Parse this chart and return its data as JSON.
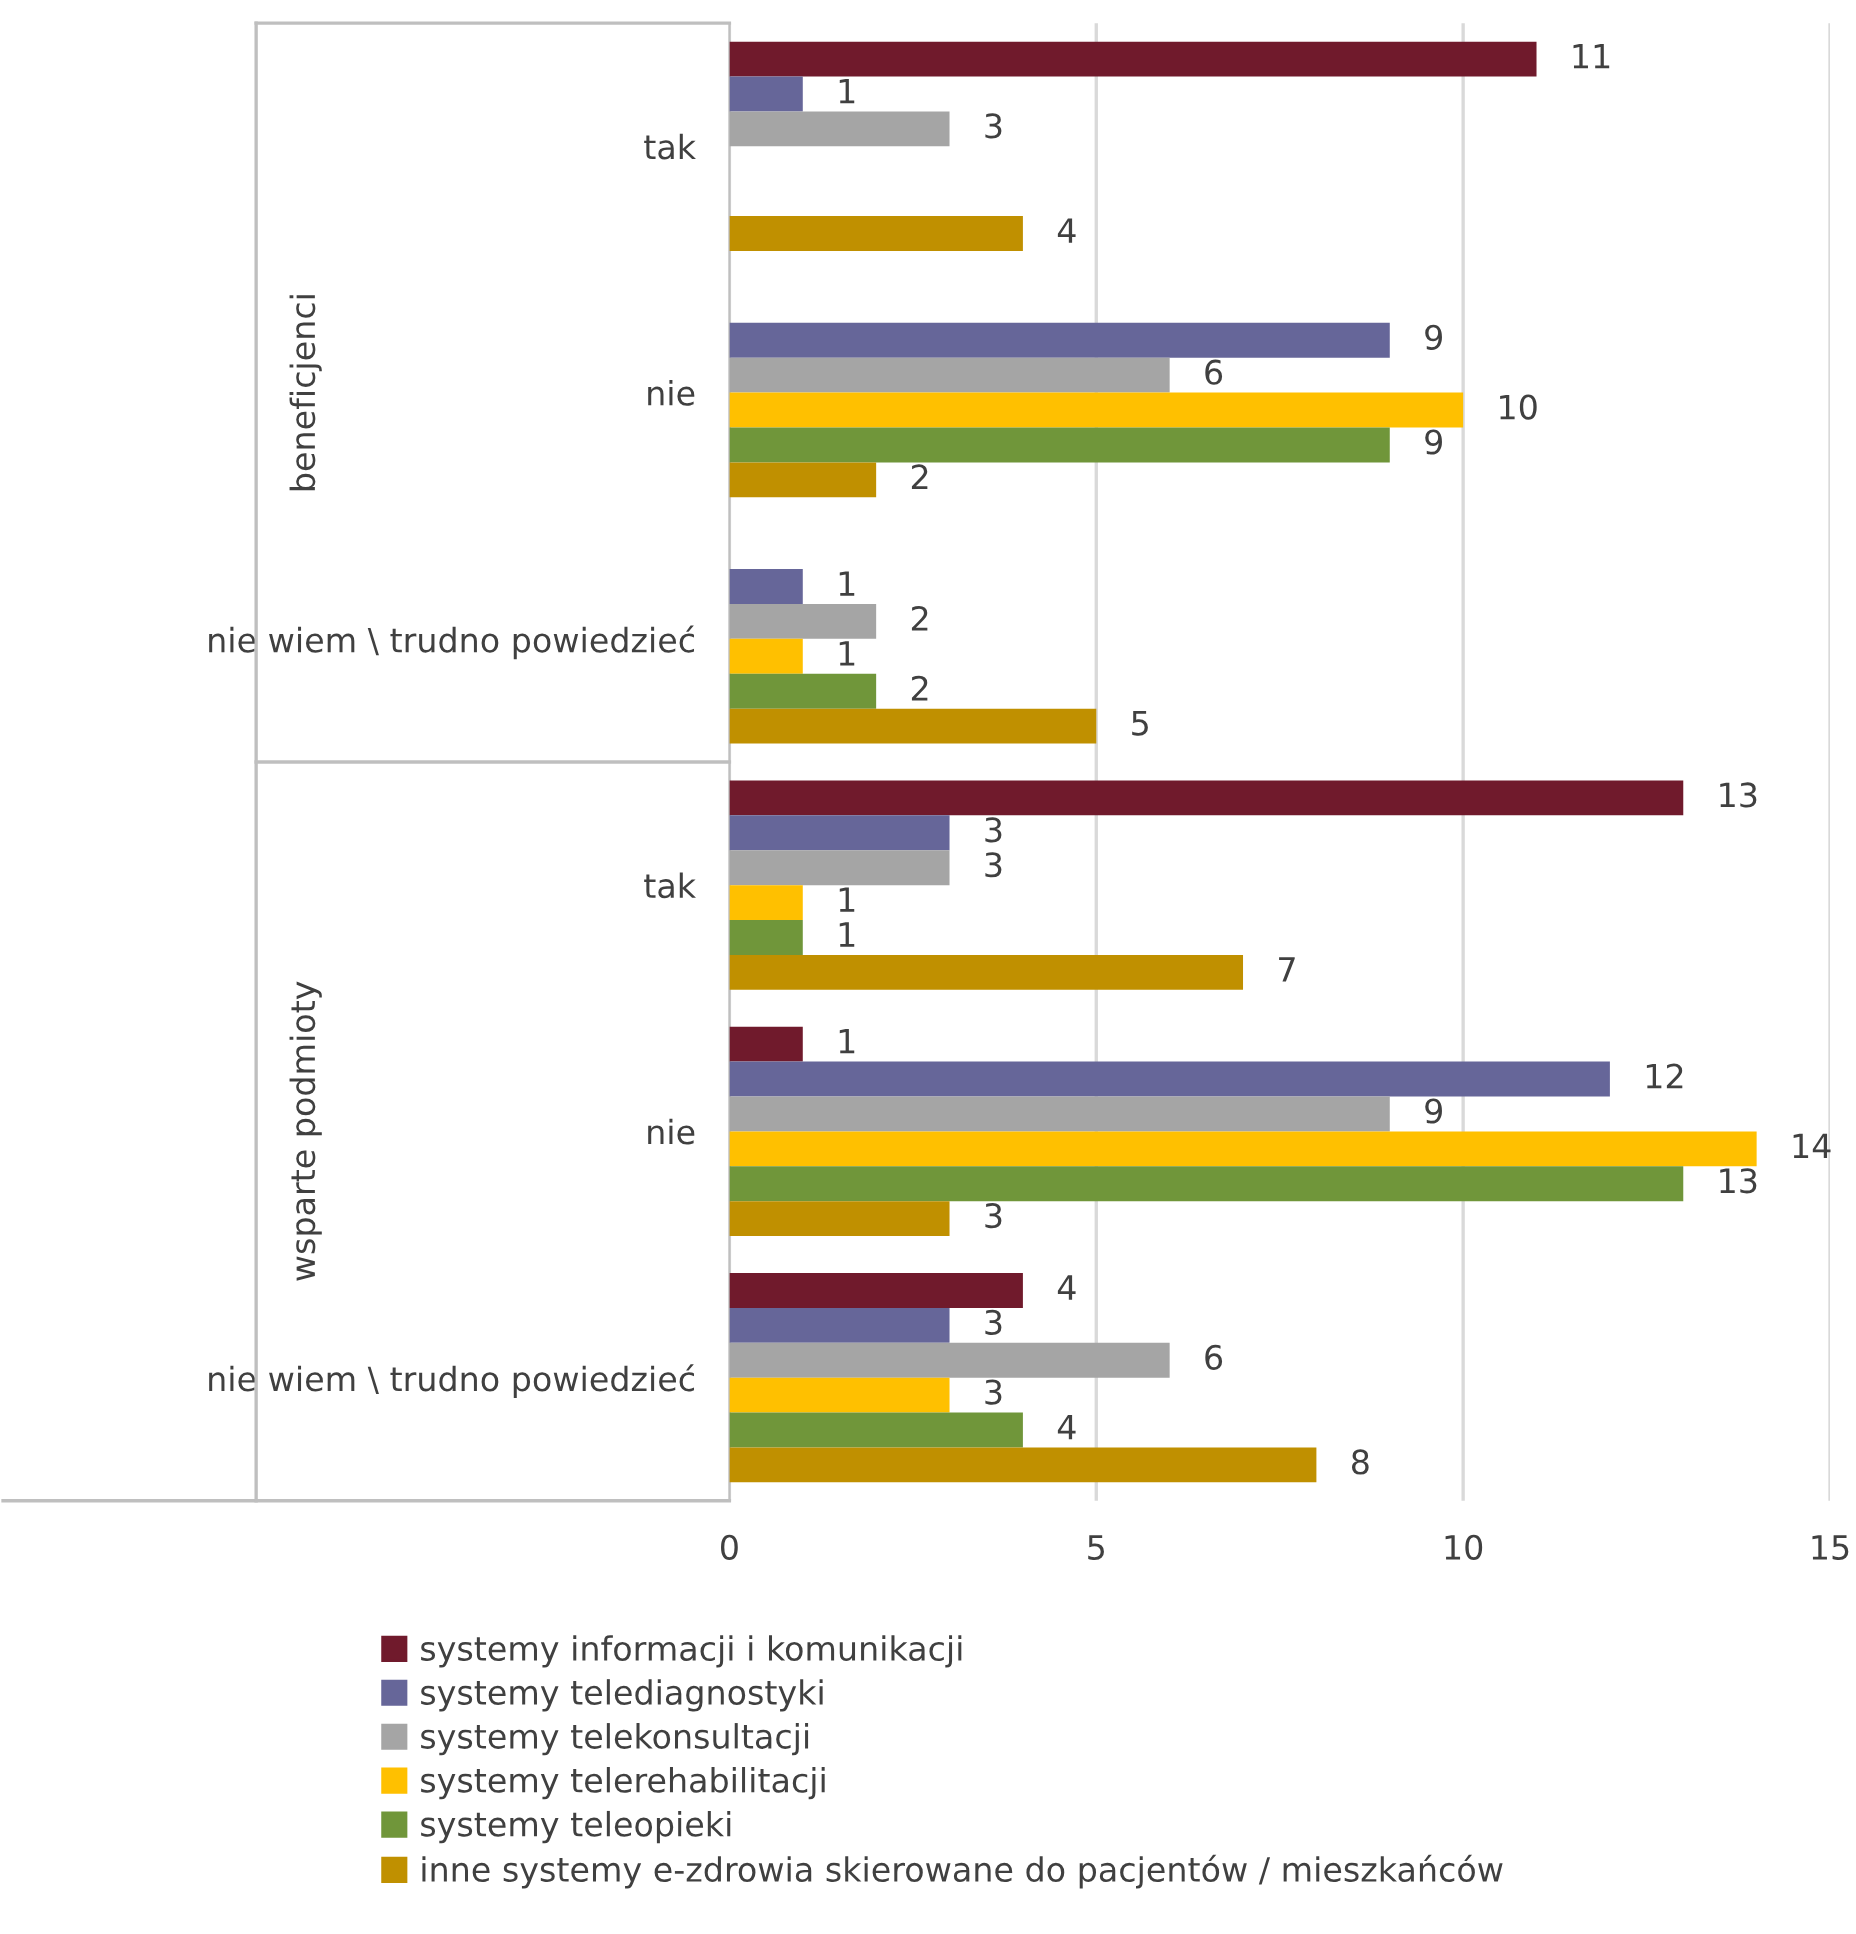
{
  "chart_data": {
    "type": "bar",
    "orientation": "horizontal",
    "categories": [
      "tak",
      "nie",
      "nie wiem \\ trudno powiedzieć",
      "tak",
      "nie",
      "nie wiem \\ trudno powiedzieć"
    ],
    "annotations": [
      "beneficjenci",
      "wsparte podmioty"
    ],
    "series": [
      {
        "name": "systemy informacji i komunikacji",
        "color": "#701a2c",
        "values": [
          11,
          null,
          null,
          13,
          1,
          4
        ]
      },
      {
        "name": "systemy telediagnostyki",
        "color": "#666699",
        "values": [
          1,
          9,
          1,
          3,
          12,
          3
        ]
      },
      {
        "name": "systemy telekonsultacji",
        "color": "#a5a5a5",
        "values": [
          3,
          6,
          2,
          3,
          9,
          6
        ]
      },
      {
        "name": "systemy telerehabilitacji",
        "color": "#ffc000",
        "values": [
          null,
          10,
          1,
          1,
          14,
          3
        ]
      },
      {
        "name": "systemy teleopieki",
        "color": "#70963a",
        "values": [
          null,
          9,
          2,
          1,
          13,
          4
        ]
      },
      {
        "name": "inne systemy e-zdrowia skierowane do pacjentów / mieszkańców",
        "color": "#c09000",
        "values": [
          4,
          2,
          5,
          7,
          3,
          8
        ]
      }
    ],
    "xlim": [
      0,
      15
    ],
    "xticks": [
      0,
      5,
      10,
      15
    ],
    "grid": "x",
    "legend": "bottom",
    "data_labels": true
  }
}
